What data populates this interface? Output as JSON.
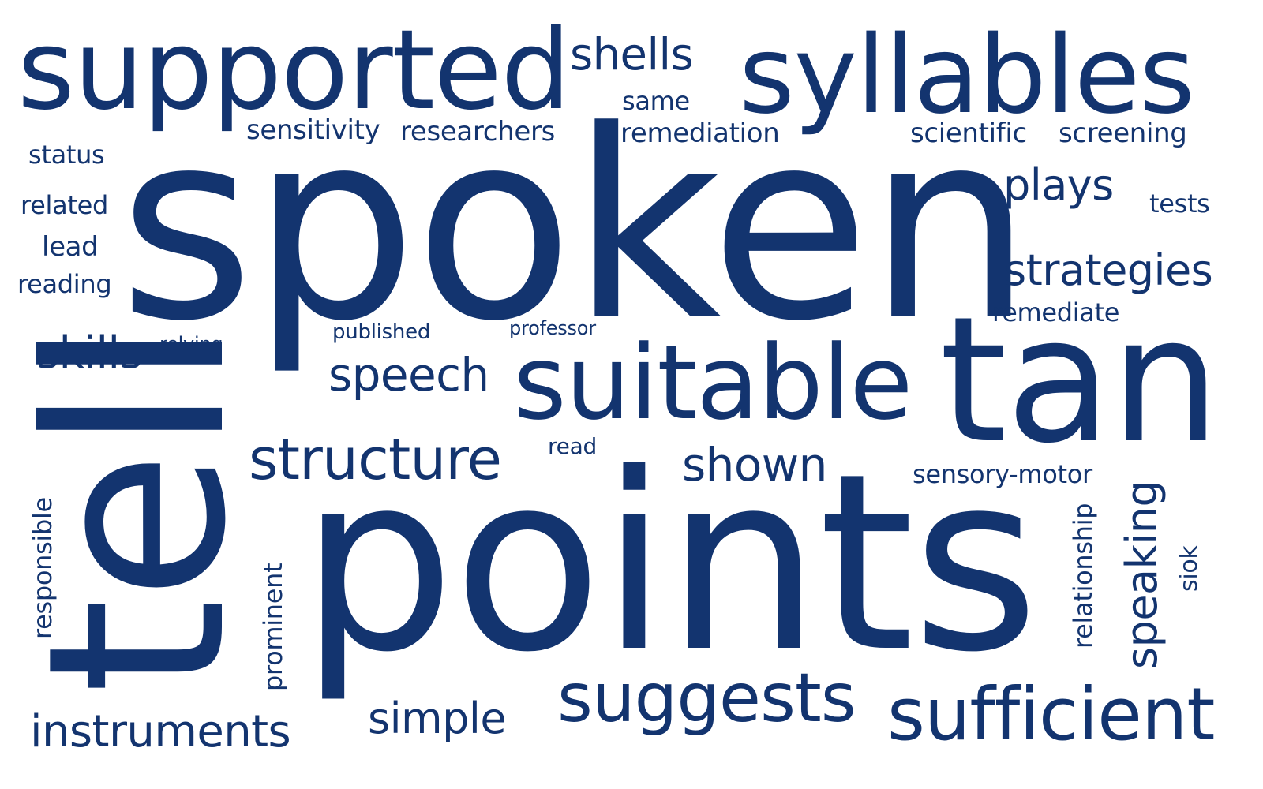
{
  "colors": {
    "word": "#13346f",
    "background": "#ffffff"
  },
  "words": {
    "supported": "supported",
    "shells": "shells",
    "syllables": "syllables",
    "same": "same",
    "sensitivity": "sensitivity",
    "researchers": "researchers",
    "remediation": "remediation",
    "scientific": "scientific",
    "screening": "screening",
    "status": "status",
    "related": "related",
    "lead": "lead",
    "reading": "reading",
    "spoken": "spoken",
    "plays": "plays",
    "tests": "tests",
    "strategies": "strategies",
    "remediate": "remediate",
    "skills": "skills",
    "relying": "relying",
    "published": "published",
    "professor": "professor",
    "speech": "speech",
    "suitable": "suitable",
    "tan": "tan",
    "tell": "tell",
    "structure": "structure",
    "read": "read",
    "shown": "shown",
    "sensory_motor": "sensory-motor",
    "points": "points",
    "responsible": "responsible",
    "prominent": "prominent",
    "relationship": "relationship",
    "speaking": "speaking",
    "siok": "siok",
    "suggests": "suggests",
    "sufficient": "sufficient",
    "simple": "simple",
    "instruments": "instruments"
  }
}
